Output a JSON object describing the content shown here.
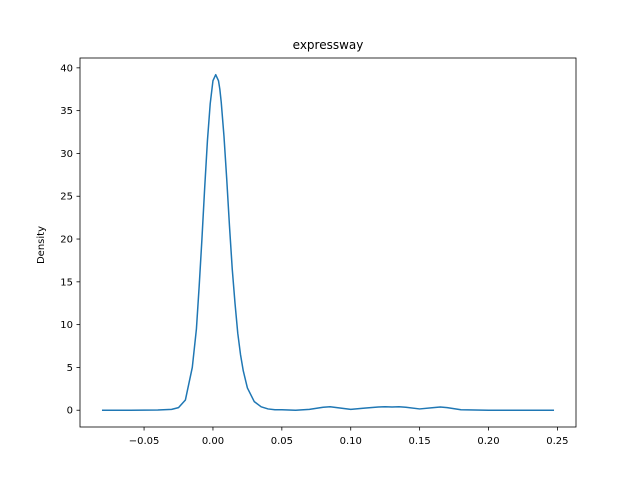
{
  "chart_data": {
    "type": "line",
    "title": "expressway",
    "xlabel": "",
    "ylabel": "Density",
    "xlim": [
      -0.0965,
      0.2635
    ],
    "ylim": [
      -1.96,
      41.15
    ],
    "x_ticks": [
      -0.05,
      0.0,
      0.05,
      0.1,
      0.15,
      0.2,
      0.25
    ],
    "x_tick_labels": [
      "−0.05",
      "0.00",
      "0.05",
      "0.10",
      "0.15",
      "0.20",
      "0.25"
    ],
    "y_ticks": [
      0,
      5,
      10,
      15,
      20,
      25,
      30,
      35,
      40
    ],
    "y_tick_labels": [
      "0",
      "5",
      "10",
      "15",
      "20",
      "25",
      "30",
      "35",
      "40"
    ],
    "grid": false,
    "legend": "none",
    "colors": {
      "line": "#1f77b4",
      "axes": "#000000",
      "background": "#ffffff"
    },
    "series": [
      {
        "x": [
          -0.08,
          -0.06,
          -0.04,
          -0.03,
          -0.025,
          -0.02,
          -0.015,
          -0.012,
          -0.01,
          -0.008,
          -0.006,
          -0.004,
          -0.002,
          0.0,
          0.002,
          0.004,
          0.005,
          0.006,
          0.008,
          0.01,
          0.012,
          0.014,
          0.016,
          0.018,
          0.02,
          0.022,
          0.025,
          0.03,
          0.035,
          0.04,
          0.045,
          0.05,
          0.06,
          0.07,
          0.08,
          0.085,
          0.09,
          0.1,
          0.11,
          0.12,
          0.125,
          0.13,
          0.135,
          0.14,
          0.15,
          0.16,
          0.165,
          0.17,
          0.18,
          0.2,
          0.22,
          0.247
        ],
        "y": [
          0,
          0,
          0.02,
          0.1,
          0.3,
          1.2,
          5.0,
          9.5,
          14.5,
          20.0,
          26.0,
          31.5,
          35.8,
          38.5,
          39.2,
          38.5,
          37.5,
          36.0,
          32.0,
          27.0,
          21.5,
          16.5,
          12.5,
          9.0,
          6.5,
          4.6,
          2.6,
          1.0,
          0.4,
          0.15,
          0.05,
          0.05,
          0.0,
          0.1,
          0.35,
          0.4,
          0.3,
          0.1,
          0.25,
          0.38,
          0.4,
          0.38,
          0.4,
          0.35,
          0.15,
          0.3,
          0.38,
          0.3,
          0.05,
          0.0,
          0.0,
          0.0
        ]
      }
    ]
  }
}
